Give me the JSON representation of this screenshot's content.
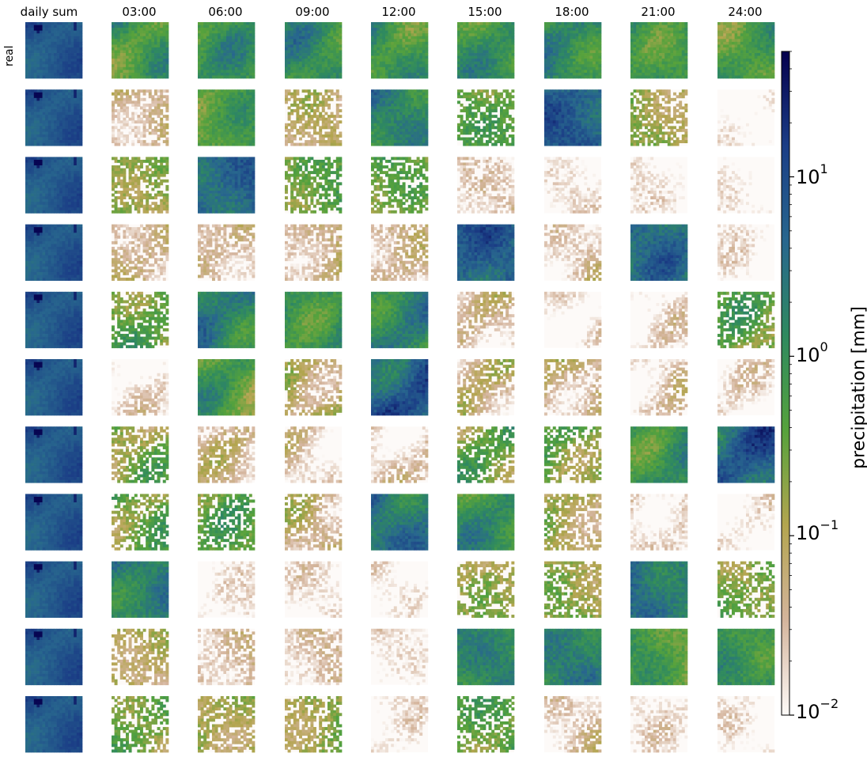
{
  "chart_data": {
    "type": "heatmap",
    "title": "",
    "columns": [
      "daily sum",
      "03:00",
      "06:00",
      "09:00",
      "12:00",
      "15:00",
      "18:00",
      "21:00",
      "24:00"
    ],
    "row_labels": [
      "real",
      "",
      "",
      "",
      "",
      "",
      "",
      "",
      "",
      "",
      ""
    ],
    "colorbar": {
      "label": "precipitation [mm]",
      "scale": "log",
      "range": [
        0.01,
        50
      ],
      "colormap": "gist_earth_r",
      "colors": [
        "#fdfaf8",
        "#d4b49c",
        "#b3a54f",
        "#56a23c",
        "#2f8a5f",
        "#28678e",
        "#1b3e86",
        "#05004d"
      ],
      "ticks": [
        {
          "base": "10",
          "exp": "1",
          "value": 10
        },
        {
          "base": "10",
          "exp": "0",
          "value": 1
        },
        {
          "base": "10",
          "exp": "−1",
          "value": 0.1
        },
        {
          "base": "10",
          "exp": "−2",
          "value": 0.01
        }
      ]
    },
    "panel_levels": [
      [
        7.5,
        0.7,
        0.8,
        1.0,
        0.8,
        0.9,
        1.1,
        0.8,
        0.6
      ],
      [
        7.5,
        0.04,
        0.5,
        0.06,
        1.5,
        0.4,
        5.0,
        0.15,
        0.01
      ],
      [
        7.5,
        0.2,
        5.0,
        0.3,
        0.3,
        0.02,
        0.01,
        0.01,
        0.01
      ],
      [
        7.5,
        0.04,
        0.04,
        0.04,
        0.03,
        6.0,
        0.02,
        3.0,
        0.01
      ],
      [
        7.5,
        0.3,
        2.0,
        1.0,
        1.5,
        0.03,
        0.01,
        0.01,
        0.3
      ],
      [
        7.5,
        0.01,
        0.5,
        0.1,
        6.0,
        0.05,
        0.05,
        0.02,
        0.01
      ],
      [
        7.5,
        0.2,
        0.03,
        0.02,
        0.02,
        0.3,
        0.3,
        1.0,
        5.0
      ],
      [
        7.5,
        0.3,
        0.3,
        0.04,
        3.0,
        1.0,
        0.1,
        0.02,
        0.01
      ],
      [
        7.5,
        2.0,
        0.01,
        0.01,
        0.01,
        0.15,
        0.15,
        3.0,
        0.3
      ],
      [
        7.5,
        0.1,
        0.03,
        0.02,
        0.01,
        1.5,
        1.5,
        0.5,
        1.0
      ],
      [
        7.5,
        0.3,
        0.15,
        0.15,
        0.01,
        0.4,
        0.02,
        0.01,
        0.01
      ]
    ]
  }
}
